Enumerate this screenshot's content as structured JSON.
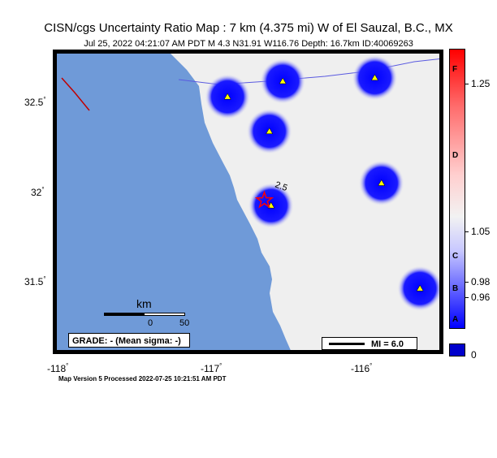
{
  "title": "CISN/cgs Uncertainty Ratio Map : 7 km (4.375 mi) W of El Sauzal, B.C., MX",
  "subtitle": "Jul 25, 2022 04:21:07 AM PDT   M 4.3   N31.91 W116.76   Depth: 16.7km   ID:40069263",
  "footer": "Map Version 5 Processed 2022-07-25 10:21:51 AM PDT",
  "axes": {
    "lat_ticks": [
      "32.5",
      "32",
      "31.5"
    ],
    "lon_ticks": [
      "-118",
      "-117",
      "-116"
    ]
  },
  "contour_label": "2.5",
  "grade_box": "GRADE: - (Mean sigma: -)",
  "scale_box": "MI = 6.0",
  "scalebar": {
    "unit": "km",
    "start": "0",
    "end": "50"
  },
  "colorbar": {
    "letters": [
      "F",
      "D",
      "C",
      "B",
      "A"
    ],
    "values": [
      "1.25",
      "1.05",
      "0.98",
      "0.96",
      "0"
    ]
  },
  "colors": {
    "water": "#6f9ad8",
    "land": "#efefef",
    "station_high": "#0000ff",
    "station_marker": "#ffff00",
    "epicenter": "#ff0000",
    "fault": "#c00000"
  },
  "stations": [
    {
      "lon": -116.73,
      "lat": 32.31,
      "label": "station"
    },
    {
      "lon": -116.06,
      "lat": 32.01,
      "label": "station"
    },
    {
      "lon": -115.83,
      "lat": 31.4,
      "label": "station"
    },
    {
      "lon": -116.98,
      "lat": 32.51,
      "label": "station"
    },
    {
      "lon": -116.65,
      "lat": 32.6,
      "label": "station"
    },
    {
      "lon": -116.1,
      "lat": 32.62,
      "label": "station"
    },
    {
      "lon": -116.72,
      "lat": 31.88,
      "label": "station"
    }
  ],
  "epicenter": {
    "lon": -116.76,
    "lat": 31.91
  }
}
